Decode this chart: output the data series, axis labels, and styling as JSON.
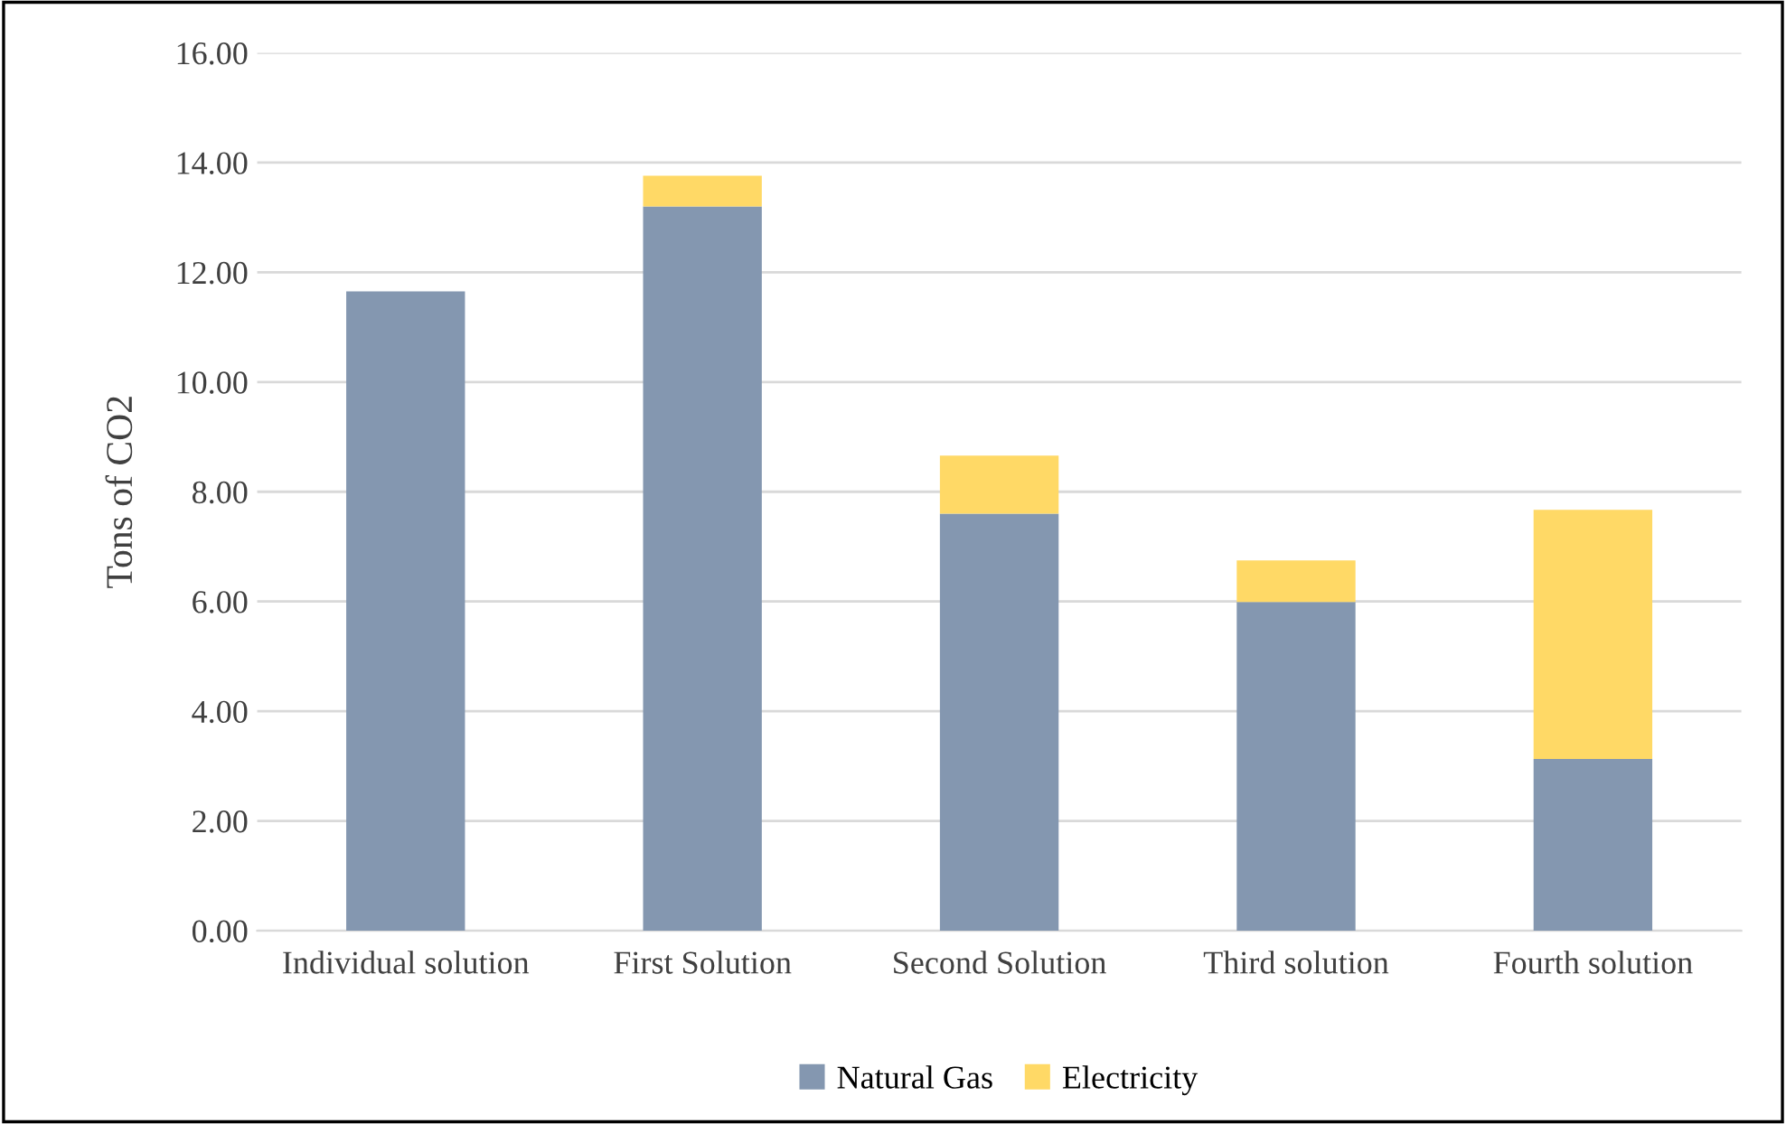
{
  "chart_data": {
    "type": "bar",
    "stacked": true,
    "ylabel": "Tons of CO2",
    "categories": [
      "Individual solution",
      "First Solution",
      "Second Solution",
      "Third solution",
      "Fourth solution"
    ],
    "series": [
      {
        "name": "Natural Gas",
        "color": "#8497b0",
        "values": [
          11.65,
          13.2,
          7.6,
          5.99,
          3.13
        ]
      },
      {
        "name": "Electricity",
        "color": "#ffd966",
        "values": [
          null,
          0.56,
          1.06,
          0.76,
          4.54
        ]
      }
    ],
    "ylim": [
      0,
      16
    ],
    "yticks": [
      {
        "value": 0,
        "label": "0.00"
      },
      {
        "value": 2,
        "label": "2.00"
      },
      {
        "value": 4,
        "label": "4.00"
      },
      {
        "value": 6,
        "label": "6.00"
      },
      {
        "value": 8,
        "label": "8.00"
      },
      {
        "value": 10,
        "label": "10.00"
      },
      {
        "value": 12,
        "label": "12.00"
      },
      {
        "value": 14,
        "label": "14.00"
      },
      {
        "value": 16,
        "label": "16.00"
      }
    ],
    "grid": "y",
    "legend": "bottom"
  }
}
